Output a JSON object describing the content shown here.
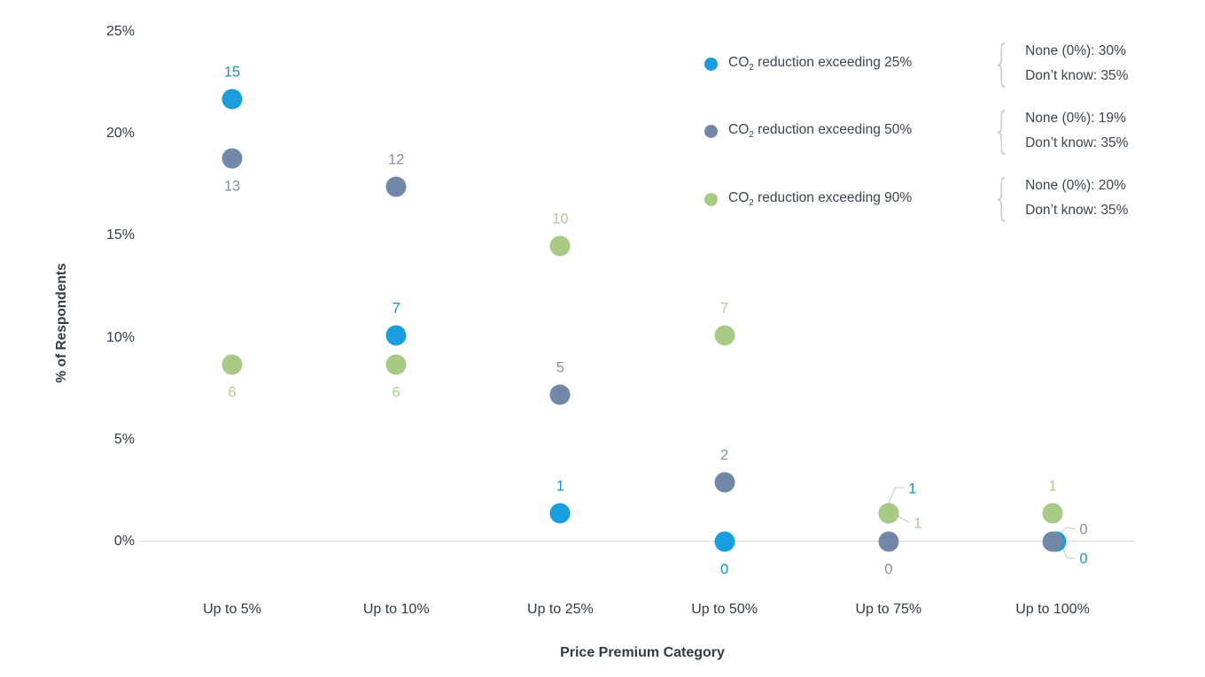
{
  "chart_data": {
    "type": "scatter",
    "title": "",
    "xlabel": "Price Premium Category",
    "ylabel": "% of Respondents",
    "ylim": [
      0,
      25
    ],
    "grid": false,
    "legend_position": "top-right",
    "yticks": [
      0,
      5,
      10,
      15,
      20,
      25
    ],
    "ytick_labels": [
      "0%",
      "5%",
      "10%",
      "15%",
      "20%",
      "25%"
    ],
    "categories": [
      "Up to 5%",
      "Up to 10%",
      "Up to 25%",
      "Up to 50%",
      "Up to 75%",
      "Up to 100%"
    ],
    "series": [
      {
        "name": "CO₂ reduction exceeding 25%",
        "name_pre": "CO",
        "name_sub": "2",
        "name_rest": " reduction exceeding 25%",
        "color": "#1a9ee0",
        "label_color": "#1b8ed3",
        "counts": [
          "15",
          "7",
          "1",
          "0",
          "1",
          "0"
        ],
        "values_pct": [
          21.7,
          10.1,
          1.4,
          0,
          1.4,
          0
        ],
        "label_pos": [
          "above",
          "above",
          "above",
          "below",
          "leader-up-right",
          "leader-down-right"
        ],
        "dx": [
          0,
          0,
          0,
          0,
          0,
          4
        ],
        "annotation": {
          "none_label": "None (0%): 30%",
          "dont_know_label": "Don’t know: 35%"
        }
      },
      {
        "name": "CO₂ reduction exceeding 50%",
        "name_pre": "CO",
        "name_sub": "2",
        "name_rest": " reduction exceeding 50%",
        "color": "#7288a8",
        "label_color": "#8292a9",
        "counts": [
          "13",
          "12",
          "5",
          "2",
          "0",
          "0"
        ],
        "values_pct": [
          18.8,
          17.4,
          7.2,
          2.9,
          0,
          0
        ],
        "label_pos": [
          "below",
          "above",
          "above",
          "above",
          "below",
          "leader-up-right-sm"
        ],
        "dx": [
          0,
          0,
          0,
          0,
          0,
          0
        ],
        "annotation": {
          "none_label": "None (0%): 19%",
          "dont_know_label": "Don’t know: 35%"
        }
      },
      {
        "name": "CO₂ reduction exceeding 90%",
        "name_pre": "CO",
        "name_sub": "2",
        "name_rest": " reduction exceeding 90%",
        "color": "#a7ca85",
        "label_color": "#aecd90",
        "counts": [
          "6",
          "6",
          "10",
          "7",
          "1",
          "1"
        ],
        "values_pct": [
          8.7,
          8.7,
          14.5,
          10.1,
          1.4,
          1.4
        ],
        "label_pos": [
          "below",
          "below",
          "above",
          "above",
          "leader-right",
          "above"
        ],
        "dx": [
          0,
          0,
          0,
          0,
          0,
          0
        ],
        "annotation": {
          "none_label": "None (0%): 20%",
          "dont_know_label": "Don’t know: 35%"
        }
      }
    ]
  }
}
